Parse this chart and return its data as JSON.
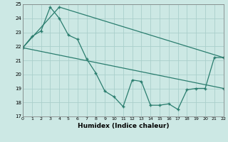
{
  "line1_x": [
    0,
    4,
    22
  ],
  "line1_y": [
    21.9,
    24.8,
    21.2
  ],
  "line2_x": [
    0,
    22
  ],
  "line2_y": [
    21.9,
    19.0
  ],
  "line3_x": [
    0,
    1,
    2,
    3,
    4,
    5,
    6,
    7,
    8,
    9,
    10,
    11,
    12,
    13,
    14,
    15,
    16,
    17,
    18,
    19,
    20,
    21,
    22
  ],
  "line3_y": [
    21.9,
    22.7,
    23.1,
    24.8,
    24.0,
    22.8,
    22.5,
    21.1,
    20.1,
    18.8,
    18.4,
    17.7,
    19.6,
    19.5,
    17.8,
    17.8,
    17.9,
    17.5,
    18.9,
    19.0,
    19.0,
    21.2,
    21.2
  ],
  "line_color": "#2a7d6e",
  "bg_color": "#cce8e4",
  "grid_color": "#aacfcb",
  "xlabel": "Humidex (Indice chaleur)",
  "ylim": [
    17,
    25
  ],
  "xlim": [
    0,
    22
  ],
  "yticks": [
    17,
    18,
    19,
    20,
    21,
    22,
    23,
    24,
    25
  ],
  "xticks": [
    0,
    1,
    2,
    3,
    4,
    5,
    6,
    7,
    8,
    9,
    10,
    11,
    12,
    13,
    14,
    15,
    16,
    17,
    18,
    19,
    20,
    21,
    22
  ],
  "marker": "+"
}
